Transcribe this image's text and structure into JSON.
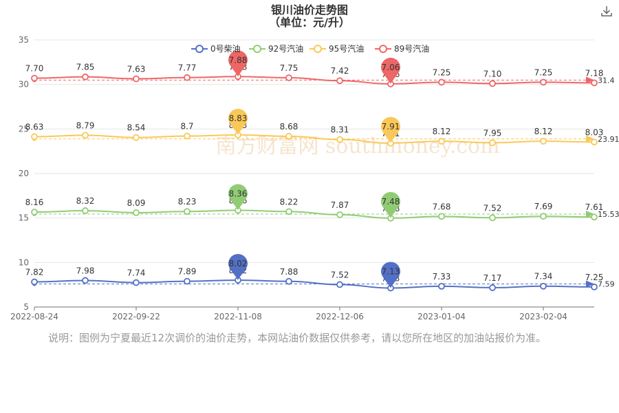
{
  "title_line1": "银川油价走势图",
  "title_line2": "（单位：元/升）",
  "watermark": "南方财富网 southmoney.com",
  "note": "说明：图例为宁夏最近12次调价的油价走势，本网站油价数据仅供参考，请以您所在地区的加油站报价为准。",
  "download_icon": "download-icon",
  "chart_data": {
    "type": "line",
    "x_labels": [
      "2022-08-24",
      "2022-09-22",
      "2022-11-08",
      "2022-12-06",
      "2023-01-04",
      "2023-02-04"
    ],
    "ylim": [
      5,
      35
    ],
    "yticks": [
      5,
      10,
      15,
      20,
      25,
      30,
      35
    ],
    "legend_position": "top-center",
    "grid": true,
    "series": [
      {
        "name": "0号柴油",
        "color": "#5470c6",
        "values": [
          7.82,
          7.98,
          7.74,
          7.89,
          8.02,
          7.88,
          7.52,
          7.13,
          7.33,
          7.17,
          7.34,
          7.25
        ],
        "labels": [
          "7.82",
          "7.98",
          "7.74",
          "7.89",
          "8.02",
          "7.88",
          "7.52",
          "7.13",
          "7.33",
          "7.17",
          "7.34",
          "7.25"
        ],
        "max_label": "8.02",
        "min_label": "7.13",
        "avg_label": "7.59"
      },
      {
        "name": "92号汽油",
        "color": "#91cc75",
        "values": [
          8.16,
          8.32,
          8.09,
          8.23,
          8.36,
          8.22,
          7.87,
          7.48,
          7.68,
          7.52,
          7.69,
          7.61
        ],
        "labels": [
          "8.16",
          "8.32",
          "8.09",
          "8.23",
          "8.36",
          "8.22",
          "7.87",
          "7.48",
          "7.68",
          "7.52",
          "7.69",
          "7.61"
        ],
        "max_label": "8.36",
        "min_label": "7.48",
        "avg_label": "15.53"
      },
      {
        "name": "95号汽油",
        "color": "#fac858",
        "values": [
          8.63,
          8.79,
          8.54,
          8.7,
          8.83,
          8.68,
          8.31,
          7.91,
          8.12,
          7.95,
          8.12,
          8.03
        ],
        "labels": [
          "8.63",
          "8.79",
          "8.54",
          "8.7",
          "8.83",
          "8.68",
          "8.31",
          "7.91",
          "8.12",
          "7.95",
          "8.12",
          "8.03"
        ],
        "max_label": "8.83",
        "min_label": "7.91",
        "avg_label": "23.91"
      },
      {
        "name": "89号汽油",
        "color": "#ee6666",
        "values": [
          7.7,
          7.85,
          7.63,
          7.77,
          7.88,
          7.75,
          7.42,
          7.06,
          7.25,
          7.1,
          7.25,
          7.18
        ],
        "labels": [
          "7.70",
          "7.85",
          "7.63",
          "7.77",
          "7.88",
          "7.75",
          "7.42",
          "7.06",
          "7.25",
          "7.10",
          "7.25",
          "7.18"
        ],
        "max_label": "7.88",
        "min_label": "7.06",
        "avg_label": "31.4"
      }
    ]
  }
}
